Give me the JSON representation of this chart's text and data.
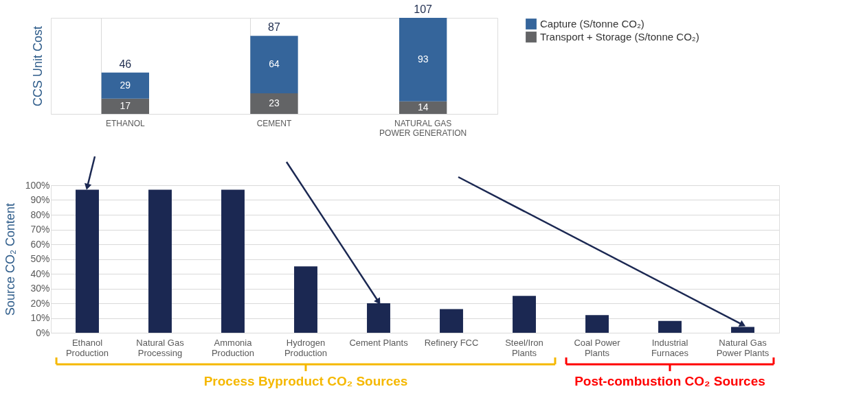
{
  "chart_data": [
    {
      "type": "bar",
      "stacked": true,
      "ylabel": "CCS Unit Cost",
      "categories": [
        "ETHANOL",
        "CEMENT",
        "NATURAL GAS POWER GENERATION"
      ],
      "series": [
        {
          "name": "Transport + Storage (S/tonne CO₂)",
          "color": "#636466",
          "values": [
            17,
            23,
            14
          ]
        },
        {
          "name": "Capture (S/tonne CO₂)",
          "color": "#35659b",
          "values": [
            29,
            64,
            93
          ]
        }
      ],
      "totals": [
        "46",
        "87",
        "107"
      ],
      "data_labels": true,
      "legend": "right",
      "grid": "x",
      "tick_labels": "x"
    },
    {
      "type": "bar",
      "ylabel": "Source CO₂ Content",
      "categories": [
        "Ethanol Production",
        "Natural Gas Processing",
        "Ammonia Production",
        "Hydrogen Production",
        "Cement Plants",
        "Refinery FCC",
        "Steel/Iron Plants",
        "Coal Power Plants",
        "Industrial Furnaces",
        "Natural Gas Power Plants"
      ],
      "values": [
        97,
        97,
        97,
        45,
        20,
        16,
        25,
        12,
        8,
        4
      ],
      "color": "#1b2852",
      "ylim": [
        0,
        100
      ],
      "yticks": [
        {
          "value": 0,
          "label": "0%"
        },
        {
          "value": 10,
          "label": "10%"
        },
        {
          "value": 20,
          "label": "20%"
        },
        {
          "value": 30,
          "label": "30%"
        },
        {
          "value": 40,
          "label": "40%"
        },
        {
          "value": 50,
          "label": "50%"
        },
        {
          "value": 60,
          "label": "60%"
        },
        {
          "value": 70,
          "label": "70%"
        },
        {
          "value": 80,
          "label": "80%"
        },
        {
          "value": 90,
          "label": "90%"
        },
        {
          "value": 100,
          "label": "100%"
        }
      ],
      "grid": "y",
      "annotations": [
        "Process Byproduct CO₂ Sources",
        "Post-combustion CO₂ Sources"
      ]
    }
  ]
}
